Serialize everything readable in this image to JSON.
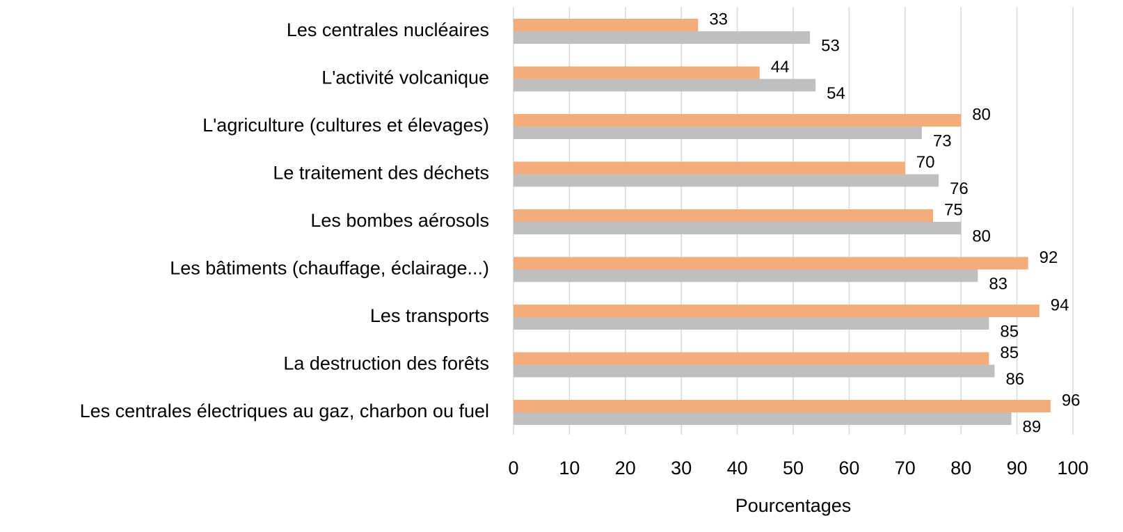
{
  "chart_data": {
    "type": "bar",
    "orientation": "horizontal",
    "x_label": "Pourcentages",
    "categories": [
      "Les centrales nucléaires",
      "L'activité volcanique",
      "L'agriculture (cultures et élevages)",
      "Le traitement des déchets",
      "Les bombes aérosols",
      "Les bâtiments (chauffage, éclairage...)",
      "Les transports",
      "La destruction des forêts",
      "Les centrales électriques au gaz, charbon ou fuel"
    ],
    "series": [
      {
        "color": "#f4ac7b",
        "values": [
          33,
          44,
          80,
          70,
          75,
          92,
          94,
          85,
          96
        ]
      },
      {
        "color": "#bfbfbf",
        "values": [
          53,
          54,
          73,
          76,
          80,
          83,
          85,
          86,
          89
        ]
      }
    ],
    "xlim": [
      0,
      100
    ],
    "xticks": [
      0,
      10,
      20,
      30,
      40,
      50,
      60,
      70,
      80,
      90,
      100
    ],
    "grid": true
  }
}
